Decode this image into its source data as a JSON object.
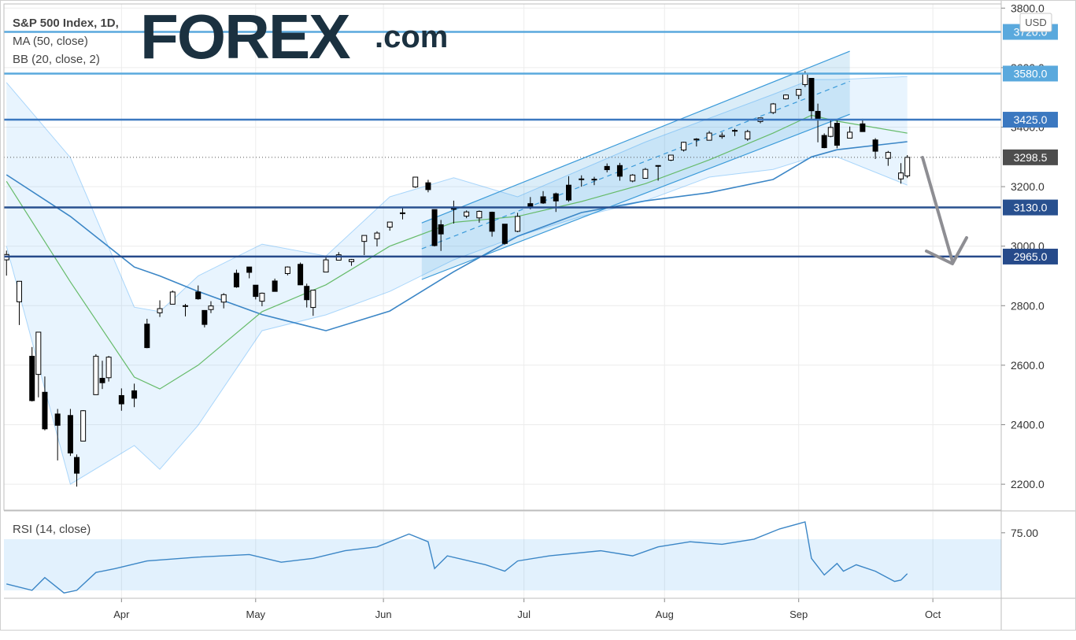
{
  "logo": {
    "name": "FOREX",
    "suffix": ".com"
  },
  "chart_data": {
    "type": "candlestick",
    "title": "S&P 500 Index, 1D,",
    "currency": "USD",
    "x": [
      0,
      2,
      4,
      5,
      6,
      8,
      10,
      11,
      12,
      14,
      15,
      16,
      18,
      20,
      22,
      24,
      26,
      28,
      30,
      31,
      32,
      34,
      36,
      38,
      39,
      40,
      42,
      44,
      46,
      47,
      48,
      50,
      52,
      54,
      56,
      58,
      60,
      62,
      64,
      66,
      67,
      68,
      70,
      72,
      74,
      76,
      78,
      80,
      82,
      84,
      86,
      88,
      90,
      92,
      94,
      96,
      98,
      100,
      102,
      104,
      106,
      108,
      110,
      112,
      114,
      116,
      118,
      120,
      122,
      124,
      125,
      126,
      127,
      128,
      129,
      130,
      132,
      134,
      136,
      138,
      140,
      141
    ],
    "open": [
      2954,
      2813,
      2630,
      2569,
      2509,
      2436,
      2431,
      2290,
      2345,
      2501,
      2556,
      2558,
      2498,
      2514,
      2738,
      2776,
      2805,
      2800,
      2846,
      2784,
      2787,
      2812,
      2909,
      2930,
      2869,
      2815,
      2883,
      2908,
      2939,
      2865,
      2794,
      2913,
      2953,
      2948,
      3016,
      3025,
      3064,
      3111,
      3199,
      3213,
      3123,
      3072,
      3131,
      3101,
      3095,
      3114,
      3074,
      3050,
      3143,
      3166,
      3176,
      3205,
      3225,
      3225,
      3268,
      3271,
      3219,
      3228,
      3270,
      3289,
      3323,
      3357,
      3356,
      3368,
      3387,
      3360,
      3419,
      3449,
      3495,
      3507,
      3543,
      3564,
      3453,
      3372,
      3369,
      3413,
      3363,
      3411,
      3357,
      3295,
      3226,
      3236
    ],
    "high": [
      2985,
      2883,
      2661,
      2711,
      2562,
      2453,
      2453,
      2300,
      2449,
      2637,
      2615,
      2631,
      2522,
      2538,
      2756,
      2818,
      2851,
      2806,
      2868,
      2785,
      2815,
      2842,
      2921,
      2930,
      2869,
      2844,
      2891,
      2932,
      2945,
      2874,
      2853,
      2968,
      2980,
      2957,
      3036,
      3050,
      3081,
      3129,
      3233,
      3223,
      3123,
      3088,
      3153,
      3120,
      3120,
      3116,
      3074,
      3112,
      3165,
      3185,
      3180,
      3235,
      3238,
      3233,
      3278,
      3280,
      3242,
      3263,
      3272,
      3306,
      3351,
      3363,
      3387,
      3382,
      3395,
      3391,
      3432,
      3481,
      3510,
      3528,
      3588,
      3564,
      3479,
      3379,
      3424,
      3425,
      3402,
      3428,
      3363,
      3320,
      3279,
      3306
    ],
    "low": [
      2901,
      2735,
      2478,
      2492,
      2381,
      2280,
      2295,
      2192,
      2345,
      2500,
      2520,
      2545,
      2447,
      2459,
      2657,
      2762,
      2805,
      2764,
      2820,
      2727,
      2775,
      2791,
      2860,
      2892,
      2821,
      2798,
      2847,
      2902,
      2869,
      2794,
      2766,
      2913,
      2953,
      2934,
      2970,
      2999,
      3052,
      3090,
      3196,
      3181,
      2999,
      2984,
      3076,
      3094,
      3079,
      3032,
      3005,
      3047,
      3124,
      3142,
      3115,
      3149,
      3200,
      3205,
      3248,
      3220,
      3215,
      3228,
      3220,
      3286,
      3318,
      3335,
      3356,
      3361,
      3370,
      3354,
      3413,
      3444,
      3493,
      3494,
      3535,
      3427,
      3349,
      3329,
      3366,
      3329,
      3363,
      3384,
      3293,
      3270,
      3210,
      3229
    ],
    "close": [
      2972,
      2882,
      2481,
      2711,
      2386,
      2398,
      2305,
      2237,
      2447,
      2630,
      2541,
      2627,
      2470,
      2489,
      2659,
      2790,
      2846,
      2800,
      2823,
      2737,
      2799,
      2837,
      2863,
      2912,
      2831,
      2842,
      2848,
      2930,
      2870,
      2820,
      2852,
      2954,
      2971,
      2955,
      3036,
      3044,
      3081,
      3112,
      3232,
      3190,
      3002,
      3041,
      3124,
      3115,
      3117,
      3050,
      3009,
      3100,
      3130,
      3145,
      3152,
      3155,
      3226,
      3224,
      3257,
      3235,
      3239,
      3258,
      3271,
      3306,
      3349,
      3360,
      3380,
      3372,
      3389,
      3385,
      3431,
      3478,
      3508,
      3527,
      3581,
      3455,
      3427,
      3331,
      3399,
      3339,
      3383,
      3385,
      3319,
      3315,
      3246,
      3298.5
    ],
    "xlim": [
      -0.4,
      155.7
    ],
    "xticks": [
      {
        "value": 18,
        "label": "Apr"
      },
      {
        "value": 39,
        "label": "May"
      },
      {
        "value": 59,
        "label": "Jun"
      },
      {
        "value": 81,
        "label": "Jul"
      },
      {
        "value": 103,
        "label": "Aug"
      },
      {
        "value": 124,
        "label": "Sep"
      },
      {
        "value": 145,
        "label": "Oct"
      }
    ],
    "ylim": [
      2113,
      3814
    ],
    "yticks": [
      {
        "value": 2200,
        "label": "2200.0"
      },
      {
        "value": 2400,
        "label": "2400.0"
      },
      {
        "value": 2600,
        "label": "2600.0"
      },
      {
        "value": 2800,
        "label": "2800.0"
      },
      {
        "value": 3000,
        "label": "3000.0"
      },
      {
        "value": 3200,
        "label": "3200.0"
      },
      {
        "value": 3400,
        "label": "3400.0"
      },
      {
        "value": 3600,
        "label": "3600.0"
      },
      {
        "value": 3800,
        "label": "3800.0"
      }
    ],
    "grid": true,
    "up_color": "#ffffff",
    "down_color": "#000000",
    "overlays": [
      {
        "name": "MA (50, close)",
        "color": "#3b86c6",
        "x": [
          0,
          10,
          20,
          24,
          30,
          40,
          50,
          60,
          70,
          80,
          90,
          100,
          110,
          120,
          126,
          130,
          141
        ],
        "values": [
          3240,
          3100,
          2930,
          2900,
          2848,
          2770,
          2716,
          2782,
          2914,
          3033,
          3113,
          3152,
          3180,
          3224,
          3300,
          3324,
          3351
        ]
      },
      {
        "name": "BB (20, close, 2)",
        "color": "#66bb6a",
        "band_color": "#2196f3",
        "x": [
          0,
          10,
          20,
          24,
          30,
          40,
          50,
          60,
          70,
          80,
          90,
          100,
          110,
          120,
          126,
          130,
          141
        ],
        "values": [
          3218,
          2880,
          2560,
          2520,
          2600,
          2780,
          2870,
          3000,
          3080,
          3100,
          3150,
          3210,
          3290,
          3380,
          3440,
          3420,
          3380
        ],
        "upper": [
          3550,
          3298,
          2795,
          2780,
          2900,
          3007,
          2967,
          3166,
          3230,
          3166,
          3258,
          3350,
          3430,
          3510,
          3560,
          3560,
          3570
        ],
        "lower": [
          3000,
          2200,
          2330,
          2250,
          2398,
          2716,
          2769,
          2848,
          2954,
          3033,
          3100,
          3152,
          3232,
          3258,
          3298,
          3300,
          3205
        ]
      }
    ],
    "channel": {
      "color": "#3a9ad9",
      "x": [
        65,
        132
      ],
      "upper": [
        3078,
        3655
      ],
      "middle": [
        2991,
        3554
      ],
      "lower": [
        2888,
        3443
      ]
    },
    "levels": [
      {
        "value": 3720,
        "label": "3720.0",
        "color": "#5aa9dd"
      },
      {
        "value": 3580,
        "label": "3580.0",
        "color": "#5aa9dd"
      },
      {
        "value": 3425,
        "label": "3425.0",
        "color": "#3b78c0"
      },
      {
        "value": 3130,
        "label": "3130.0",
        "color": "#28508f"
      },
      {
        "value": 2965,
        "label": "2965.0",
        "color": "#264a8a"
      }
    ],
    "last": {
      "value": 3298.5,
      "label": "3298.5",
      "color": "#4d4d4d"
    },
    "rsi": {
      "name": "RSI (14, close)",
      "color": "#3b86c6",
      "band_color": "#2196f3",
      "x": [
        0,
        4,
        6,
        9,
        11,
        14,
        17,
        22,
        30,
        38,
        43,
        48,
        53,
        58,
        63,
        66,
        67,
        69,
        75,
        78,
        80,
        85,
        93,
        98,
        102,
        107,
        112,
        117,
        121,
        125,
        126,
        128,
        130,
        131,
        133,
        136,
        139,
        140,
        141
      ],
      "values": [
        35,
        30,
        40,
        28,
        30,
        44,
        47,
        53,
        56,
        58,
        52,
        55,
        61,
        64,
        74,
        68,
        47,
        57,
        50,
        45,
        53,
        57,
        61,
        57,
        64,
        68,
        66,
        70,
        78,
        83.5,
        55,
        42,
        51,
        45,
        50,
        45,
        37,
        38,
        43
      ],
      "ylim": [
        23.8,
        91.5
      ],
      "yticks": [
        {
          "value": 75,
          "label": "75.00"
        }
      ],
      "band": [
        30,
        70
      ]
    }
  }
}
